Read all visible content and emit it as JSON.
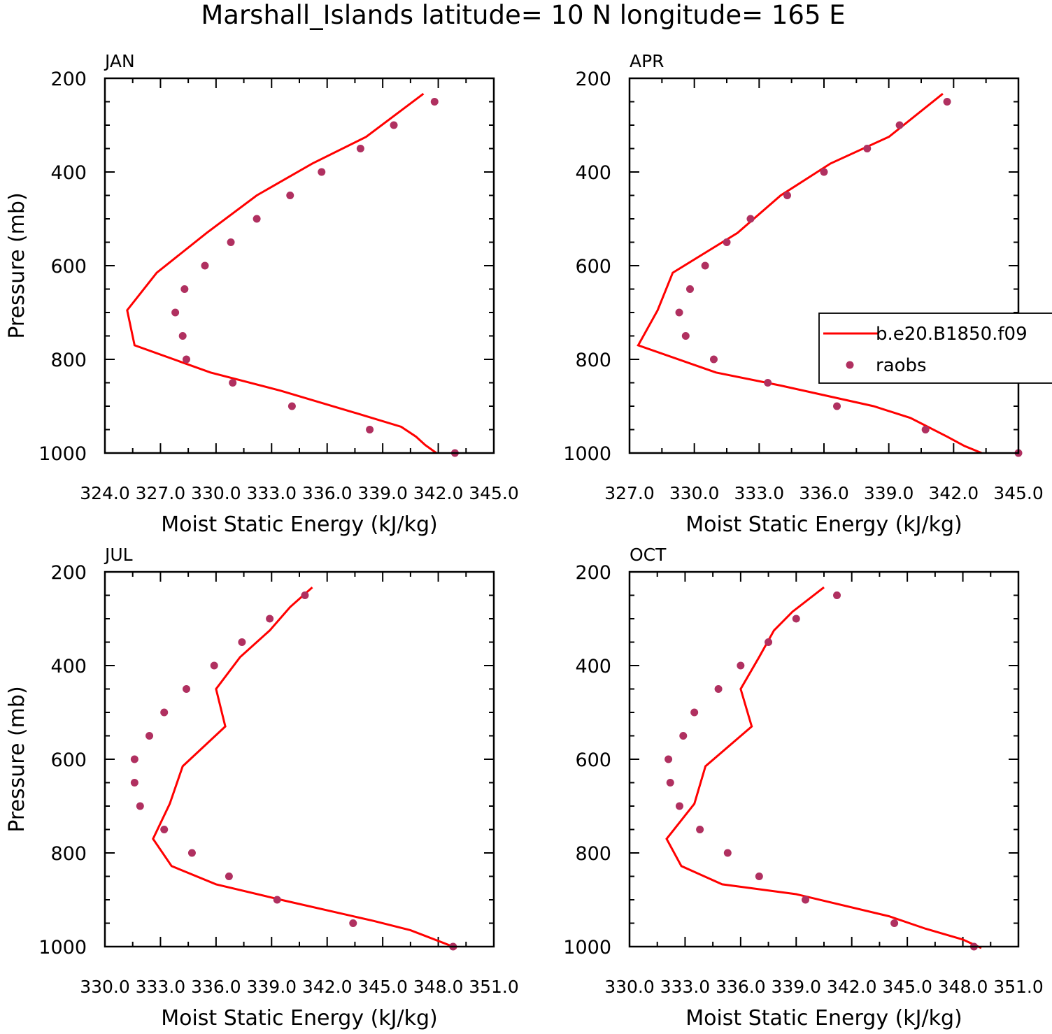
{
  "title": "Marshall_Islands  latitude= 10 N longitude= 165 E",
  "legend": {
    "model_label": "b.e20.B1850.f09",
    "obs_label": "raobs"
  },
  "colors": {
    "model_line": "#ff0000",
    "obs_marker": "#b03060",
    "axes": "#000000"
  },
  "chart_data": [
    {
      "type": "line",
      "panel_label": "JAN",
      "xlabel": "Moist Static Energy (kJ/kg)",
      "ylabel": "Pressure (mb)",
      "xlim": [
        324.0,
        345.0
      ],
      "ylim": [
        1000,
        200
      ],
      "xticks": [
        324.0,
        327.0,
        330.0,
        333.0,
        336.0,
        339.0,
        342.0,
        345.0
      ],
      "xtick_labels": [
        "324.0",
        "327.0",
        "330.0",
        "333.0",
        "336.0",
        "339.0",
        "342.0",
        "345.0"
      ],
      "yticks": [
        200,
        400,
        600,
        800,
        1000
      ],
      "ytick_labels": [
        "200",
        "400",
        "600",
        "800",
        "1000"
      ],
      "series": [
        {
          "name": "b.e20.B1850.f09",
          "kind": "line",
          "x": [
            341.2,
            338.1,
            335.2,
            332.2,
            329.5,
            326.8,
            325.2,
            325.6,
            329.7,
            333.5,
            338.0,
            340.0,
            340.8,
            341.3,
            341.9
          ],
          "y": [
            233,
            325,
            382,
            450,
            530,
            615,
            695,
            770,
            828,
            867,
            920,
            944,
            965,
            983,
            1000
          ]
        },
        {
          "name": "raobs",
          "kind": "scatter",
          "x": [
            341.8,
            339.6,
            337.8,
            335.7,
            334.0,
            332.2,
            330.8,
            329.4,
            328.3,
            327.8,
            328.2,
            328.4,
            330.9,
            334.1,
            338.3,
            342.9
          ],
          "y": [
            250,
            300,
            350,
            400,
            450,
            500,
            550,
            600,
            650,
            700,
            750,
            800,
            850,
            900,
            950,
            1000
          ]
        }
      ]
    },
    {
      "type": "line",
      "panel_label": "APR",
      "xlabel": "Moist Static Energy (kJ/kg)",
      "ylabel": "",
      "xlim": [
        327.0,
        345.0
      ],
      "ylim": [
        1000,
        200
      ],
      "xticks": [
        327.0,
        330.0,
        333.0,
        336.0,
        339.0,
        342.0,
        345.0
      ],
      "xtick_labels": [
        "327.0",
        "330.0",
        "333.0",
        "336.0",
        "339.0",
        "342.0",
        "345.0"
      ],
      "yticks": [
        200,
        400,
        600,
        800,
        1000
      ],
      "ytick_labels": [
        "200",
        "400",
        "600",
        "800",
        "1000"
      ],
      "series": [
        {
          "name": "b.e20.B1850.f09",
          "kind": "line",
          "x": [
            341.5,
            339.0,
            336.3,
            334.0,
            332.0,
            329.0,
            328.3,
            327.4,
            331.0,
            334.0,
            338.3,
            340.0,
            341.7,
            342.5,
            343.3
          ],
          "y": [
            233,
            325,
            382,
            450,
            530,
            615,
            695,
            770,
            828,
            856,
            900,
            925,
            965,
            985,
            1000
          ]
        },
        {
          "name": "raobs",
          "kind": "scatter",
          "x": [
            341.7,
            339.5,
            338.0,
            336.0,
            334.3,
            332.6,
            331.5,
            330.5,
            329.8,
            329.3,
            329.6,
            330.9,
            333.4,
            336.6,
            340.7,
            345.0
          ],
          "y": [
            250,
            300,
            350,
            400,
            450,
            500,
            550,
            600,
            650,
            700,
            750,
            800,
            850,
            900,
            950,
            1000
          ]
        }
      ]
    },
    {
      "type": "line",
      "panel_label": "JUL",
      "xlabel": "Moist Static Energy (kJ/kg)",
      "ylabel": "Pressure (mb)",
      "xlim": [
        330.0,
        351.0
      ],
      "ylim": [
        1000,
        200
      ],
      "xticks": [
        330.0,
        333.0,
        336.0,
        339.0,
        342.0,
        345.0,
        348.0,
        351.0
      ],
      "xtick_labels": [
        "330.0",
        "333.0",
        "336.0",
        "339.0",
        "342.0",
        "345.0",
        "348.0",
        "351.0"
      ],
      "yticks": [
        200,
        400,
        600,
        800,
        1000
      ],
      "ytick_labels": [
        "200",
        "400",
        "600",
        "800",
        "1000"
      ],
      "series": [
        {
          "name": "b.e20.B1850.f09",
          "kind": "line",
          "x": [
            341.2,
            340.0,
            338.9,
            337.3,
            336.0,
            336.5,
            334.2,
            333.5,
            332.6,
            333.6,
            336.0,
            339.5,
            344.5,
            346.5,
            349.0
          ],
          "y": [
            233,
            275,
            325,
            382,
            450,
            530,
            615,
            695,
            770,
            828,
            867,
            900,
            945,
            965,
            1003
          ]
        },
        {
          "name": "raobs",
          "kind": "scatter",
          "x": [
            340.8,
            338.9,
            337.4,
            335.9,
            334.4,
            333.2,
            332.4,
            331.6,
            331.6,
            331.9,
            333.2,
            334.7,
            336.7,
            339.3,
            343.4,
            348.8
          ],
          "y": [
            250,
            300,
            350,
            400,
            450,
            500,
            550,
            600,
            650,
            700,
            750,
            800,
            850,
            900,
            950,
            1000
          ]
        }
      ]
    },
    {
      "type": "line",
      "panel_label": "OCT",
      "xlabel": "Moist Static Energy (kJ/kg)",
      "ylabel": "",
      "xlim": [
        330.0,
        351.0
      ],
      "ylim": [
        1000,
        200
      ],
      "xticks": [
        330.0,
        333.0,
        336.0,
        339.0,
        342.0,
        345.0,
        348.0,
        351.0
      ],
      "xtick_labels": [
        "330.0",
        "333.0",
        "336.0",
        "339.0",
        "342.0",
        "345.0",
        "348.0",
        "351.0"
      ],
      "yticks": [
        200,
        400,
        600,
        800,
        1000
      ],
      "ytick_labels": [
        "200",
        "400",
        "600",
        "800",
        "1000"
      ],
      "series": [
        {
          "name": "b.e20.B1850.f09",
          "kind": "line",
          "x": [
            340.5,
            338.8,
            337.8,
            337.0,
            336.0,
            336.6,
            334.1,
            333.5,
            332.0,
            332.8,
            335.0,
            339.0,
            344.0,
            346.0,
            348.0,
            349.0
          ],
          "y": [
            233,
            285,
            325,
            382,
            450,
            530,
            615,
            695,
            770,
            828,
            867,
            888,
            935,
            962,
            985,
            1003
          ]
        },
        {
          "name": "raobs",
          "kind": "scatter",
          "x": [
            341.2,
            339.0,
            337.5,
            336.0,
            334.8,
            333.5,
            332.9,
            332.1,
            332.2,
            332.7,
            333.8,
            335.3,
            337.0,
            339.5,
            344.3,
            348.6
          ],
          "y": [
            250,
            300,
            350,
            400,
            450,
            500,
            550,
            600,
            650,
            700,
            750,
            800,
            850,
            900,
            950,
            1000
          ]
        }
      ]
    }
  ]
}
